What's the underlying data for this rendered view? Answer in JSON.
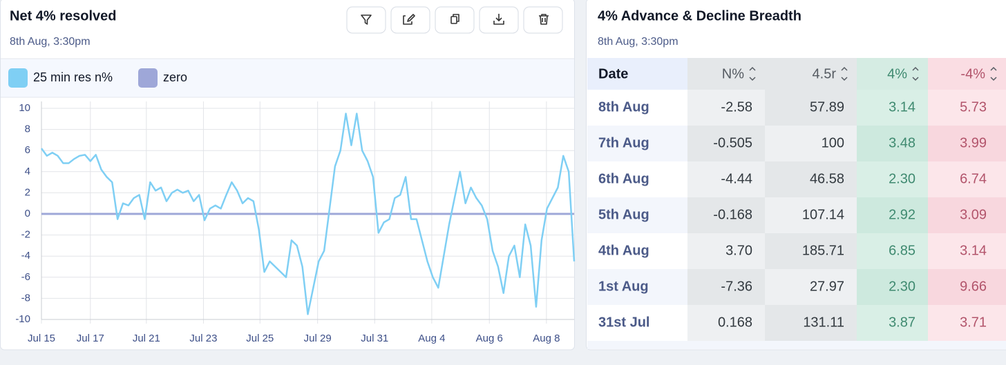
{
  "left_panel": {
    "title": "Net 4% resolved",
    "subtitle": "8th Aug, 3:30pm"
  },
  "chart_data": {
    "type": "line",
    "series": [
      {
        "name": "25 min res n%",
        "color": "#7fcff4",
        "values": [
          6.2,
          5.5,
          5.8,
          5.5,
          4.8,
          4.8,
          5.2,
          5.5,
          5.6,
          5.0,
          5.6,
          4.2,
          3.5,
          3.0,
          -0.5,
          1.0,
          0.8,
          1.5,
          1.8,
          -0.5,
          3.0,
          2.2,
          2.5,
          1.2,
          2.0,
          2.3,
          2.0,
          2.2,
          1.2,
          1.8,
          -0.6,
          0.5,
          0.8,
          0.5,
          1.8,
          3.0,
          2.2,
          1.0,
          1.5,
          1.2,
          -1.5,
          -5.5,
          -4.5,
          -5.0,
          -5.5,
          -6.0,
          -2.5,
          -3.0,
          -5.0,
          -9.5,
          -7.0,
          -4.5,
          -3.5,
          0.5,
          4.5,
          6.0,
          9.5,
          6.5,
          9.5,
          6.0,
          5.0,
          3.5,
          -1.8,
          -0.8,
          -0.5,
          1.5,
          1.8,
          3.5,
          -0.5,
          -0.5,
          -2.5,
          -4.5,
          -6.0,
          -7.0,
          -4.0,
          -1.0,
          1.5,
          4.0,
          1.0,
          2.5,
          1.5,
          0.8,
          -0.5,
          -3.5,
          -5.0,
          -7.5,
          -4.0,
          -3.0,
          -6.0,
          -1.0,
          -3.0,
          -8.8,
          -2.5,
          0.5,
          1.5,
          2.5,
          5.5,
          4.0,
          -4.5
        ]
      },
      {
        "name": "zero",
        "color": "#9ea7d8",
        "values": [
          0,
          0,
          0,
          0,
          0,
          0,
          0,
          0,
          0,
          0,
          0,
          0,
          0,
          0,
          0,
          0,
          0,
          0,
          0,
          0,
          0,
          0,
          0,
          0,
          0,
          0,
          0,
          0,
          0,
          0,
          0,
          0,
          0,
          0,
          0,
          0,
          0,
          0,
          0,
          0,
          0,
          0,
          0,
          0,
          0,
          0,
          0,
          0,
          0,
          0,
          0,
          0,
          0,
          0,
          0,
          0,
          0,
          0,
          0,
          0,
          0,
          0,
          0,
          0,
          0,
          0,
          0,
          0,
          0,
          0,
          0,
          0,
          0,
          0,
          0,
          0,
          0,
          0,
          0,
          0,
          0,
          0,
          0,
          0,
          0,
          0,
          0,
          0,
          0,
          0,
          0,
          0,
          0,
          0,
          0,
          0,
          0,
          0,
          0
        ]
      }
    ],
    "xlim": [
      0,
      98
    ],
    "xticks": [
      {
        "value": 0,
        "label": "Jul 15"
      },
      {
        "value": 9,
        "label": "Jul 17"
      },
      {
        "value": 19.3,
        "label": "Jul 21"
      },
      {
        "value": 29.8,
        "label": "Jul 23"
      },
      {
        "value": 40.2,
        "label": "Jul 25"
      },
      {
        "value": 50.8,
        "label": "Jul 29"
      },
      {
        "value": 61.3,
        "label": "Jul 31"
      },
      {
        "value": 71.8,
        "label": "Aug 4"
      },
      {
        "value": 82.4,
        "label": "Aug 6"
      },
      {
        "value": 92.9,
        "label": "Aug 8"
      }
    ],
    "ylim": [
      -10,
      10
    ],
    "yticks": [
      10,
      8,
      6,
      4,
      2,
      0,
      -2,
      -4,
      -6,
      -8,
      -10
    ],
    "grid": true
  },
  "right_panel": {
    "title": "4% Advance & Decline Breadth",
    "subtitle": "8th Aug, 3:30pm"
  },
  "table": {
    "columns": [
      "Date",
      "N%",
      "4.5r",
      "4%",
      "-4%"
    ],
    "rows": [
      [
        "8th Aug",
        "-2.58",
        "57.89",
        "3.14",
        "5.73"
      ],
      [
        "7th Aug",
        "-0.505",
        "100",
        "3.48",
        "3.99"
      ],
      [
        "6th Aug",
        "-4.44",
        "46.58",
        "2.30",
        "6.74"
      ],
      [
        "5th Aug",
        "-0.168",
        "107.14",
        "2.92",
        "3.09"
      ],
      [
        "4th Aug",
        "3.70",
        "185.71",
        "6.85",
        "3.14"
      ],
      [
        "1st Aug",
        "-7.36",
        "27.97",
        "2.30",
        "9.66"
      ],
      [
        "31st Jul",
        "0.168",
        "131.11",
        "3.87",
        "3.71"
      ]
    ]
  }
}
